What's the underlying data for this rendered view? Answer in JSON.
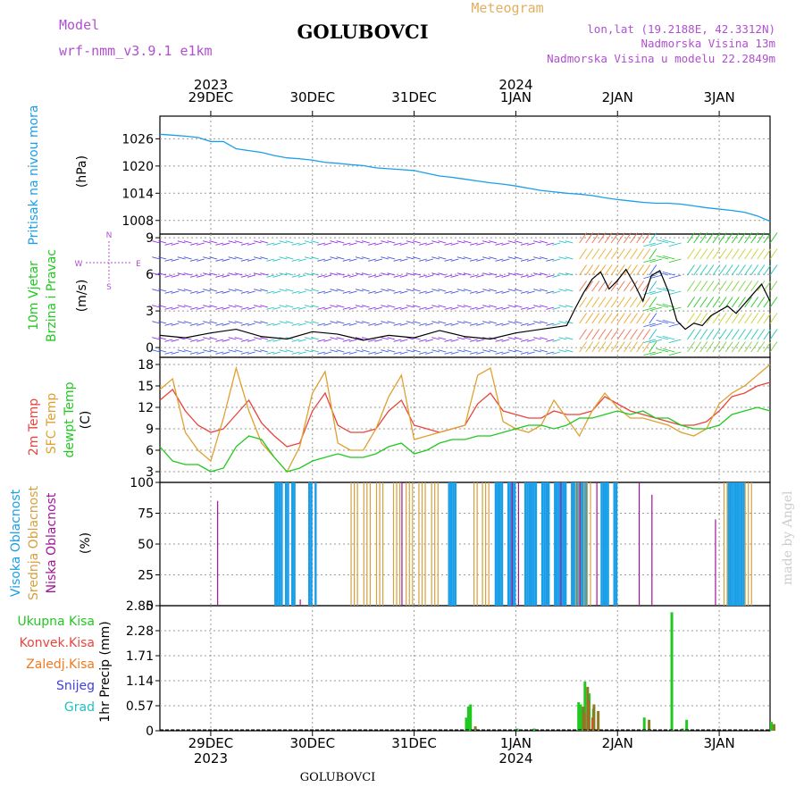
{
  "header": {
    "model_label": "Model",
    "model_name": "wrf-nmm_v3.9.1 e1km",
    "title": "GOLUBOVCI",
    "meteogram_label": "Meteogram",
    "lonlat": "lon,lat (19.2188E, 42.3312N)",
    "elevation": "Nadmorska Visina 13m",
    "model_elevation": "Nadmorska Visina u modelu 22.2849m",
    "footer_title": "GOLUBOVCI",
    "watermark": "made by Angel"
  },
  "colors": {
    "pressure": "#1a9ee8",
    "temp2m": "#e8453c",
    "sfc_temp": "#e0a030",
    "dewpoint": "#22c822",
    "high_cloud": "#1a9ee8",
    "mid_cloud": "#d4a040",
    "low_cloud": "#a0169a",
    "total_precip": "#22c822",
    "conv_precip": "#e8453c",
    "frozen_precip": "#f07a20",
    "snow": "#4040e0",
    "graupel": "#20c0c0",
    "wind_speed": "#000000",
    "wind_barbs": "#8a2be2",
    "header_purple": "#b050d0",
    "header_gold": "#e0b060"
  },
  "time_axis": {
    "top_dates": [
      {
        "day": "29DEC",
        "year": "2023"
      },
      {
        "day": "30DEC",
        "year": ""
      },
      {
        "day": "31DEC",
        "year": ""
      },
      {
        "day": "1JAN",
        "year": "2024"
      },
      {
        "day": "2JAN",
        "year": ""
      },
      {
        "day": "3JAN",
        "year": ""
      }
    ],
    "start": "2023-12-28T12:00",
    "end": "2024-01-03T12:00"
  },
  "chart_data": [
    {
      "type": "line",
      "panel": "pressure",
      "ylabel_lines": [
        "Pritisak na nivou mora",
        "(hPa)"
      ],
      "ylim": [
        1005,
        1031
      ],
      "yticks": [
        1008,
        1014,
        1020,
        1026
      ],
      "grid": true,
      "series": [
        {
          "name": "Pritisak na nivou mora",
          "x": [
            0,
            3,
            6,
            9,
            12,
            15,
            18,
            21,
            24,
            27,
            30,
            33,
            36,
            39,
            42,
            45,
            48,
            51,
            54,
            57,
            60,
            63,
            66,
            69,
            72,
            75,
            78,
            81,
            84,
            87,
            90,
            93,
            96,
            99,
            102,
            105,
            108,
            111,
            114,
            117,
            120,
            123,
            126,
            129,
            132,
            135,
            138,
            141,
            144
          ],
          "values": [
            1027.0,
            1026.8,
            1026.6,
            1026.3,
            1025.4,
            1025.4,
            1023.8,
            1023.4,
            1023.0,
            1022.3,
            1021.8,
            1021.6,
            1021.3,
            1020.8,
            1020.6,
            1020.3,
            1020.1,
            1019.6,
            1019.4,
            1019.2,
            1019.0,
            1018.4,
            1017.8,
            1017.5,
            1017.1,
            1016.7,
            1016.3,
            1016.0,
            1015.6,
            1015.1,
            1014.6,
            1014.3,
            1014.0,
            1013.8,
            1013.5,
            1013.0,
            1012.6,
            1012.3,
            1012.0,
            1011.8,
            1011.8,
            1011.6,
            1011.2,
            1010.8,
            1010.5,
            1010.2,
            1009.8,
            1009.0,
            1007.8
          ]
        }
      ]
    },
    {
      "type": "line",
      "panel": "wind",
      "ylabel_lines": [
        "10m Vjetar",
        "Brzina i Pravac",
        "(m/s)"
      ],
      "compass": {
        "n": "N",
        "s": "S",
        "e": "E",
        "w": "W"
      },
      "ylim": [
        -0.8,
        9.3
      ],
      "yticks": [
        0,
        3,
        6,
        9
      ],
      "grid": true,
      "series": [
        {
          "name": "Brzina",
          "x": [
            0,
            6,
            12,
            18,
            24,
            30,
            36,
            42,
            48,
            54,
            60,
            66,
            72,
            78,
            84,
            90,
            96,
            98,
            100,
            102,
            104,
            106,
            108,
            110,
            112,
            114,
            116,
            118,
            120,
            122,
            124,
            126,
            128,
            130,
            132,
            134,
            136,
            138,
            140,
            142,
            144
          ],
          "values": [
            1.0,
            0.8,
            1.2,
            1.5,
            0.9,
            0.7,
            1.3,
            1.1,
            0.6,
            1.0,
            0.8,
            1.4,
            0.9,
            0.7,
            1.2,
            1.5,
            1.8,
            3.2,
            4.5,
            5.6,
            6.2,
            4.8,
            5.5,
            6.4,
            5.2,
            3.8,
            5.9,
            6.3,
            4.6,
            2.2,
            1.5,
            2.0,
            1.8,
            2.6,
            3.0,
            3.4,
            2.8,
            3.6,
            4.4,
            5.2,
            3.8
          ]
        }
      ]
    },
    {
      "type": "line",
      "panel": "temperature",
      "ylabel_lines": [
        "2m Temp",
        "SFC Temp",
        "dewpt Temp",
        "(C)"
      ],
      "ylim": [
        1.5,
        19
      ],
      "yticks": [
        3,
        6,
        9,
        12,
        15,
        18
      ],
      "grid": true,
      "series": [
        {
          "name": "2m Temp",
          "x": [
            0,
            3,
            6,
            9,
            12,
            15,
            18,
            21,
            24,
            27,
            30,
            33,
            36,
            39,
            42,
            45,
            48,
            51,
            54,
            57,
            60,
            63,
            66,
            69,
            72,
            75,
            78,
            81,
            84,
            87,
            90,
            93,
            96,
            99,
            102,
            105,
            108,
            111,
            114,
            117,
            120,
            123,
            126,
            129,
            132,
            135,
            138,
            141,
            144
          ],
          "values": [
            13.0,
            14.5,
            11.5,
            9.5,
            8.5,
            9.0,
            11.0,
            13.0,
            9.8,
            8.0,
            6.5,
            7.0,
            11.5,
            14.0,
            9.5,
            8.5,
            8.5,
            9.0,
            11.5,
            13.0,
            9.5,
            9.0,
            8.5,
            9.0,
            9.5,
            12.5,
            14.0,
            11.5,
            11.0,
            10.5,
            10.5,
            11.5,
            11.0,
            11.0,
            11.5,
            13.5,
            12.5,
            11.5,
            11.0,
            10.5,
            10.0,
            9.5,
            9.5,
            10.0,
            11.5,
            13.5,
            14.0,
            15.0,
            15.5
          ]
        },
        {
          "name": "SFC Temp",
          "x": [
            0,
            3,
            6,
            9,
            12,
            15,
            18,
            21,
            24,
            27,
            30,
            33,
            36,
            39,
            42,
            45,
            48,
            51,
            54,
            57,
            60,
            63,
            66,
            69,
            72,
            75,
            78,
            81,
            84,
            87,
            90,
            93,
            96,
            99,
            102,
            105,
            108,
            111,
            114,
            117,
            120,
            123,
            126,
            129,
            132,
            135,
            138,
            141,
            144
          ],
          "values": [
            14.5,
            16.0,
            8.5,
            6.0,
            4.5,
            10.5,
            17.5,
            11.5,
            7.0,
            5.0,
            3.0,
            6.5,
            14.0,
            17.0,
            7.0,
            6.0,
            6.0,
            9.0,
            13.5,
            16.5,
            7.5,
            8.0,
            8.5,
            9.0,
            9.5,
            16.5,
            17.5,
            10.0,
            9.0,
            8.5,
            9.5,
            13.0,
            10.5,
            8.0,
            11.5,
            14.0,
            12.0,
            10.5,
            10.5,
            10.0,
            9.5,
            8.5,
            8.0,
            9.0,
            12.5,
            14.0,
            15.0,
            16.5,
            18.0
          ]
        },
        {
          "name": "dewpt Temp",
          "x": [
            0,
            3,
            6,
            9,
            12,
            15,
            18,
            21,
            24,
            27,
            30,
            33,
            36,
            39,
            42,
            45,
            48,
            51,
            54,
            57,
            60,
            63,
            66,
            69,
            72,
            75,
            78,
            81,
            84,
            87,
            90,
            93,
            96,
            99,
            102,
            105,
            108,
            111,
            114,
            117,
            120,
            123,
            126,
            129,
            132,
            135,
            138,
            141,
            144
          ],
          "values": [
            6.5,
            4.5,
            4.0,
            4.0,
            3.0,
            3.5,
            6.5,
            8.0,
            7.5,
            5.0,
            3.0,
            3.5,
            4.5,
            5.0,
            5.5,
            5.0,
            5.0,
            5.5,
            6.5,
            7.0,
            5.5,
            6.0,
            7.0,
            7.5,
            7.5,
            8.0,
            8.0,
            8.5,
            9.0,
            9.5,
            9.5,
            9.0,
            9.5,
            10.5,
            10.5,
            11.0,
            11.5,
            11.0,
            11.5,
            10.5,
            10.5,
            9.5,
            9.0,
            9.0,
            9.5,
            11.0,
            11.5,
            12.0,
            11.5
          ]
        }
      ]
    },
    {
      "type": "bar",
      "panel": "clouds",
      "ylabel_lines": [
        "Visoka Oblacnost",
        "Srednja Oblacnost",
        "Niska Oblacnost",
        "(%)"
      ],
      "ylim": [
        0,
        100
      ],
      "yticks": [
        0,
        25,
        50,
        75,
        100
      ],
      "grid": true,
      "series": [
        {
          "name": "Visoka Oblacnost",
          "spans": [
            [
              27,
              29
            ],
            [
              29.5,
              30.5
            ],
            [
              31,
              32
            ],
            [
              35,
              36
            ],
            [
              36.5,
              37
            ],
            [
              68,
              70
            ],
            [
              79,
              81
            ],
            [
              82,
              84
            ],
            [
              86,
              89
            ],
            [
              90,
              92
            ],
            [
              93,
              96
            ],
            [
              97,
              101
            ],
            [
              104,
              106
            ],
            [
              107,
              108
            ],
            [
              134,
              138
            ]
          ],
          "values": 100
        },
        {
          "name": "Srednja Oblacnost",
          "spans": [
            [
              45,
              47
            ],
            [
              48,
              50
            ],
            [
              51,
              53
            ],
            [
              55,
              57
            ],
            [
              58,
              60
            ],
            [
              61,
              63
            ],
            [
              64,
              66
            ],
            [
              74,
              75
            ],
            [
              76,
              78
            ],
            [
              98,
              99
            ],
            [
              100,
              102
            ],
            [
              133,
              134
            ],
            [
              138,
              140
            ]
          ],
          "values": 100
        },
        {
          "name": "Niska Oblacnost",
          "x": [
            13.5,
            33,
            57,
            83,
            84.5,
            94.5,
            99,
            103,
            113,
            116,
            131
          ],
          "values": [
            85,
            5,
            100,
            100,
            100,
            100,
            100,
            100,
            100,
            90,
            70
          ]
        }
      ]
    },
    {
      "type": "bar",
      "panel": "precip",
      "ylabel_lines": [
        "1hr Precip (mm)"
      ],
      "legend": [
        "Ukupna Kisa",
        "Konvek.Kisa",
        "Zaledj.Kisa",
        "Snijeg",
        "Grad"
      ],
      "ylim": [
        0,
        2.85
      ],
      "yticks": [
        0,
        0.57,
        1.14,
        1.71,
        2.28,
        2.85
      ],
      "ytick_labels": [
        "0",
        "0.57",
        "1.14",
        "1.71",
        "2.28",
        "2.85"
      ],
      "grid": true,
      "series": [
        {
          "name": "Ukupna Kisa",
          "x": [
            72,
            72.5,
            73,
            84,
            88,
            98.5,
            99,
            99.5,
            100,
            101,
            102,
            114,
            120.5,
            123,
            124,
            144,
            144.5
          ],
          "values": [
            0.3,
            0.55,
            0.6,
            0.05,
            0.05,
            0.65,
            0.6,
            0.5,
            1.12,
            0.85,
            0.5,
            0.3,
            2.7,
            0.05,
            0.25,
            0.2,
            0.15
          ]
        },
        {
          "name": "Konvek.Kisa",
          "x": [
            99.5,
            100.5,
            101.5
          ],
          "values": [
            0.4,
            0.7,
            0.3
          ]
        },
        {
          "name": "Zaledj.Kisa",
          "x": [
            73.5,
            99,
            100,
            101.5,
            102.5,
            114.5,
            144
          ],
          "values": [
            0.1,
            0.55,
            1.0,
            0.6,
            0.45,
            0.25,
            0.15
          ]
        }
      ]
    }
  ]
}
